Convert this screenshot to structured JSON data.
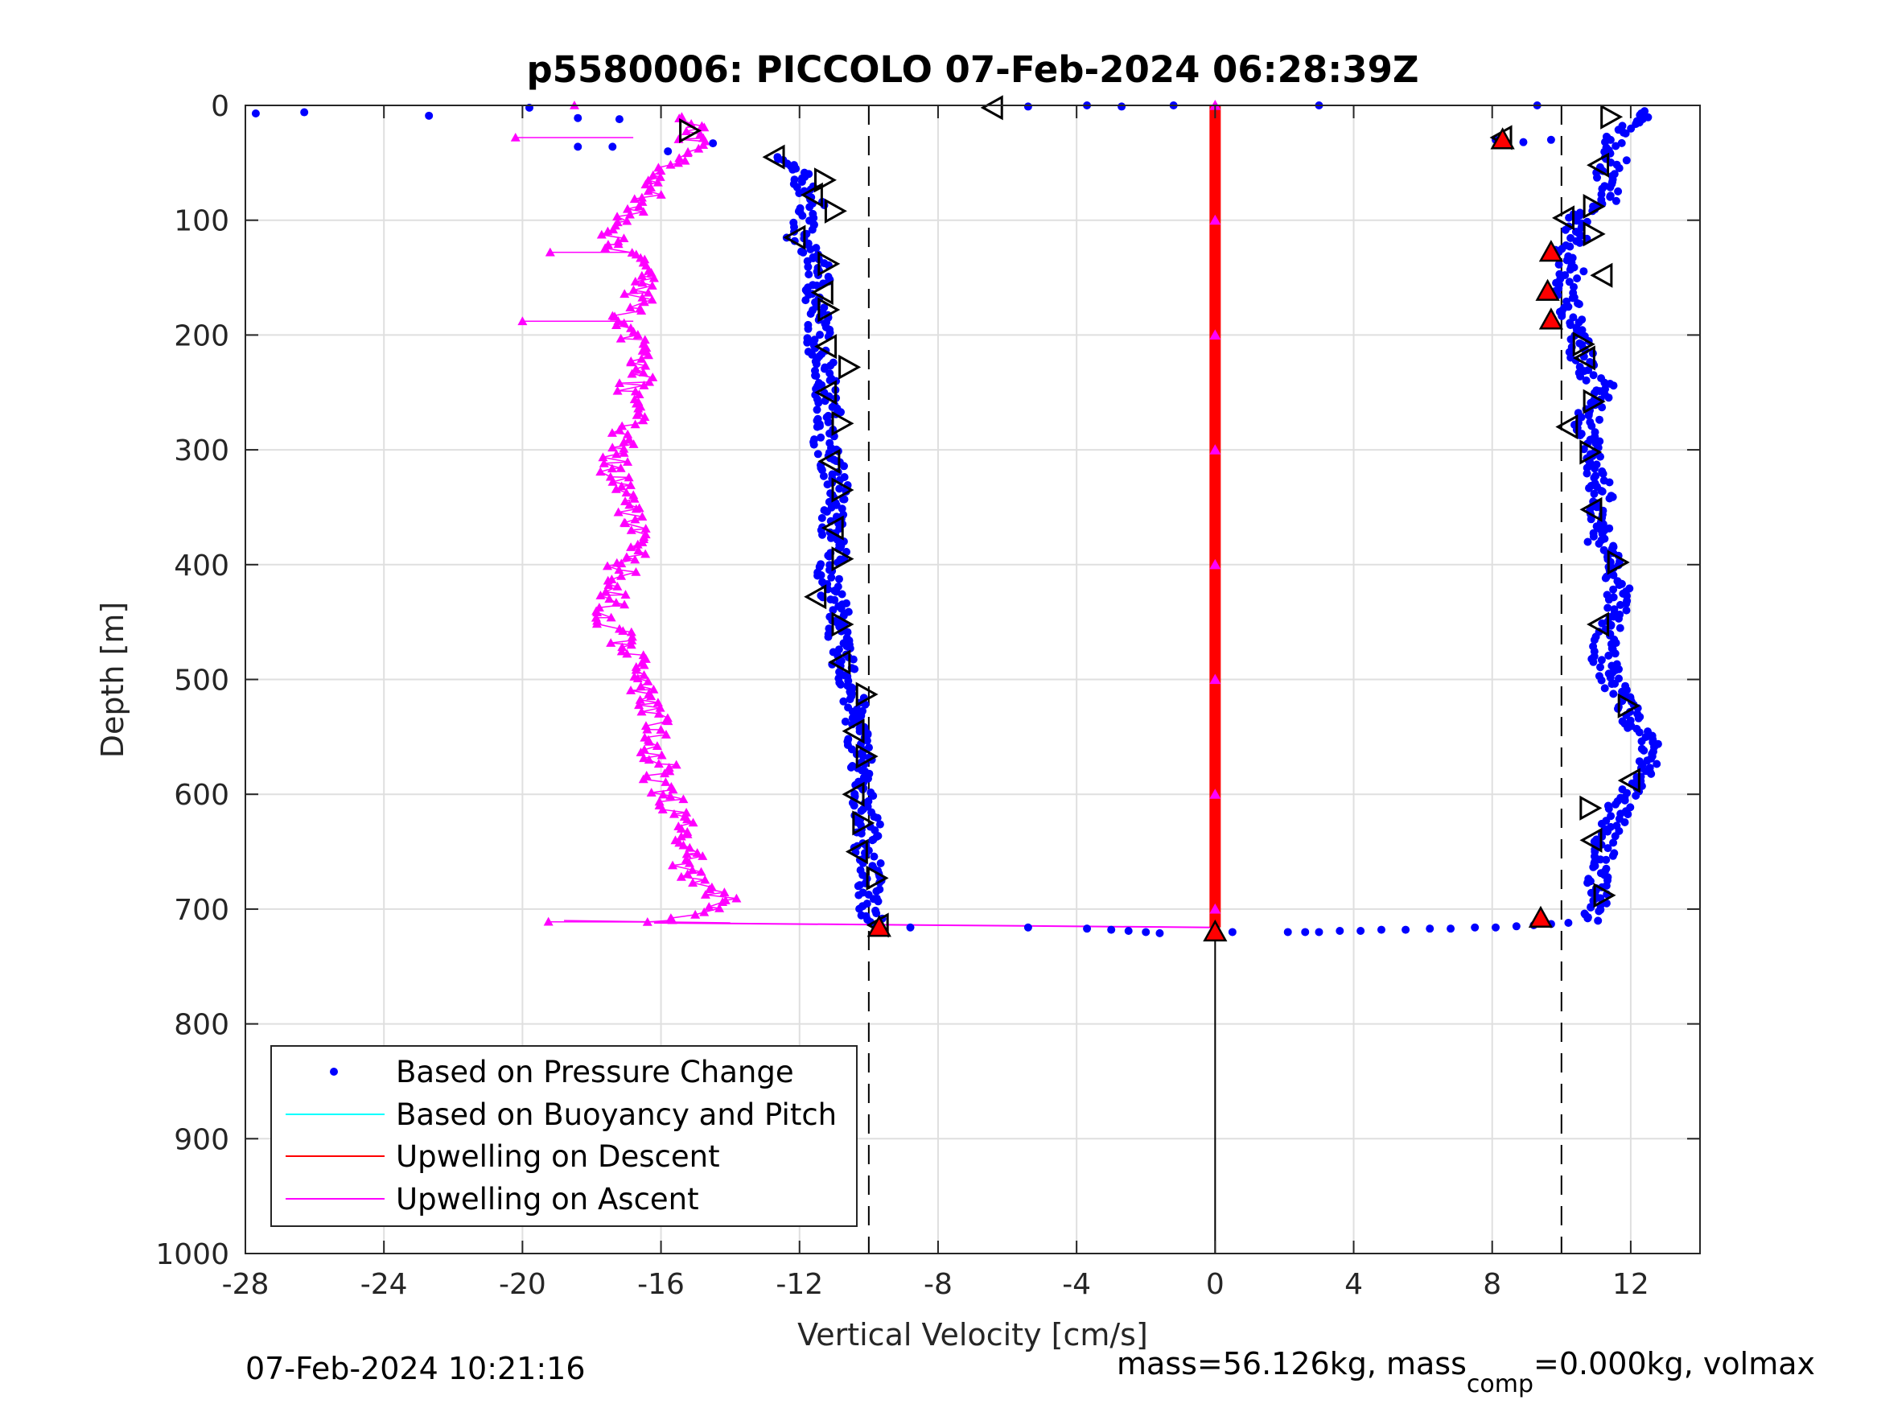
{
  "chart_data": {
    "type": "scatter",
    "title": "p5580006: PICCOLO 07-Feb-2024 06:28:39Z",
    "xlabel": "Vertical Velocity [cm/s]",
    "ylabel": "Depth [m]",
    "xlim": [
      -28,
      14
    ],
    "ylim": [
      0,
      1000
    ],
    "y_reversed": true,
    "grid": true,
    "xticks": [
      -28,
      -24,
      -20,
      -16,
      -12,
      -8,
      -4,
      0,
      4,
      8,
      12
    ],
    "yticks": [
      0,
      100,
      200,
      300,
      400,
      500,
      600,
      700,
      800,
      900,
      1000
    ],
    "reference_lines": [
      -10,
      10
    ],
    "legend": {
      "placement": "bottom-left",
      "entries": [
        {
          "label": "Based on Pressure Change",
          "color": "#0000ff",
          "style": "dot"
        },
        {
          "label": "Based on Buoyancy and Pitch",
          "color": "#00ffff",
          "style": "line"
        },
        {
          "label": "Upwelling on Descent",
          "color": "#ff0000",
          "style": "line"
        },
        {
          "label": "Upwelling on Ascent",
          "color": "#ff00ff",
          "style": "line"
        }
      ]
    },
    "series": [
      {
        "key": "pressure_descent",
        "color": "#0000ff",
        "marker": "dot",
        "points": [
          [
            -12.8,
            45
          ],
          [
            -12.2,
            55
          ],
          [
            -11.8,
            70
          ],
          [
            -11.6,
            85
          ],
          [
            -11.8,
            100
          ],
          [
            -12.1,
            115
          ],
          [
            -11.6,
            130
          ],
          [
            -11.4,
            150
          ],
          [
            -11.6,
            170
          ],
          [
            -11.4,
            190
          ],
          [
            -11.5,
            210
          ],
          [
            -11.2,
            230
          ],
          [
            -11.3,
            250
          ],
          [
            -11.1,
            270
          ],
          [
            -11.3,
            290
          ],
          [
            -11.1,
            310
          ],
          [
            -10.9,
            330
          ],
          [
            -11.0,
            350
          ],
          [
            -11.1,
            370
          ],
          [
            -10.9,
            390
          ],
          [
            -11.2,
            410
          ],
          [
            -11.0,
            430
          ],
          [
            -10.8,
            450
          ],
          [
            -10.9,
            470
          ],
          [
            -10.7,
            490
          ],
          [
            -10.5,
            510
          ],
          [
            -10.4,
            530
          ],
          [
            -10.3,
            550
          ],
          [
            -10.2,
            570
          ],
          [
            -10.3,
            590
          ],
          [
            -10.1,
            610
          ],
          [
            -10.0,
            630
          ],
          [
            -10.1,
            650
          ],
          [
            -9.9,
            670
          ],
          [
            -10.1,
            690
          ],
          [
            -9.9,
            705
          ],
          [
            -9.7,
            715
          ]
        ]
      },
      {
        "key": "pressure_ascent",
        "color": "#0000ff",
        "marker": "dot",
        "points": [
          [
            10.9,
            710
          ],
          [
            11.2,
            690
          ],
          [
            11.0,
            670
          ],
          [
            11.2,
            650
          ],
          [
            11.4,
            630
          ],
          [
            11.7,
            610
          ],
          [
            12.2,
            590
          ],
          [
            12.5,
            570
          ],
          [
            12.6,
            555
          ],
          [
            12.1,
            540
          ],
          [
            11.8,
            520
          ],
          [
            11.4,
            500
          ],
          [
            11.2,
            480
          ],
          [
            11.3,
            460
          ],
          [
            11.6,
            440
          ],
          [
            11.7,
            420
          ],
          [
            11.5,
            400
          ],
          [
            11.1,
            380
          ],
          [
            11.0,
            360
          ],
          [
            11.2,
            340
          ],
          [
            11.0,
            320
          ],
          [
            10.8,
            300
          ],
          [
            10.7,
            280
          ],
          [
            10.9,
            260
          ],
          [
            11.3,
            248
          ],
          [
            10.8,
            235
          ],
          [
            10.6,
            220
          ],
          [
            10.5,
            205
          ],
          [
            10.3,
            190
          ],
          [
            10.2,
            175
          ],
          [
            10.1,
            160
          ],
          [
            10.3,
            145
          ],
          [
            10.0,
            130
          ],
          [
            10.5,
            115
          ],
          [
            10.4,
            100
          ],
          [
            11.2,
            85
          ],
          [
            11.5,
            75
          ],
          [
            11.3,
            60
          ],
          [
            11.6,
            45
          ],
          [
            11.4,
            30
          ],
          [
            12.0,
            15
          ],
          [
            12.4,
            5
          ]
        ]
      },
      {
        "key": "pressure_surface_outliers",
        "color": "#0000ff",
        "marker": "dot",
        "points": [
          [
            -27.7,
            7
          ],
          [
            -26.3,
            6
          ],
          [
            -22.7,
            9
          ],
          [
            -19.8,
            2
          ],
          [
            -18.4,
            11
          ],
          [
            -17.2,
            12
          ],
          [
            -18.4,
            36
          ],
          [
            -17.4,
            36
          ],
          [
            -15.8,
            40
          ],
          [
            -14.5,
            33
          ],
          [
            -5.4,
            1
          ],
          [
            -3.7,
            0
          ],
          [
            -2.7,
            1
          ],
          [
            -1.2,
            0
          ],
          [
            3.0,
            0
          ],
          [
            9.3,
            0
          ],
          [
            8.1,
            30
          ],
          [
            8.9,
            32
          ],
          [
            9.7,
            30
          ]
        ]
      },
      {
        "key": "pressure_bottom_turnaround",
        "color": "#0000ff",
        "marker": "dot",
        "points": [
          [
            -8.8,
            716
          ],
          [
            -5.4,
            716
          ],
          [
            -3.7,
            717
          ],
          [
            -3.0,
            718
          ],
          [
            -2.5,
            719
          ],
          [
            -2.0,
            720
          ],
          [
            -1.6,
            721
          ],
          [
            0.5,
            720
          ],
          [
            2.1,
            720
          ],
          [
            2.6,
            720
          ],
          [
            3.0,
            720
          ],
          [
            3.6,
            719
          ],
          [
            4.2,
            719
          ],
          [
            4.8,
            718
          ],
          [
            5.5,
            718
          ],
          [
            6.2,
            717
          ],
          [
            6.8,
            717
          ],
          [
            7.5,
            716
          ],
          [
            8.1,
            716
          ],
          [
            8.7,
            715
          ],
          [
            9.2,
            714
          ],
          [
            9.7,
            713
          ],
          [
            10.2,
            712
          ]
        ]
      },
      {
        "key": "upwelling_ascent",
        "color": "#ff00ff",
        "marker": "triangle",
        "points": [
          [
            -18.8,
            710
          ],
          [
            -16.2,
            712
          ],
          [
            -14.6,
            700
          ],
          [
            -14.2,
            690
          ],
          [
            -14.9,
            680
          ],
          [
            -15.3,
            665
          ],
          [
            -15.1,
            650
          ],
          [
            -15.6,
            635
          ],
          [
            -15.4,
            620
          ],
          [
            -15.8,
            605
          ],
          [
            -16.1,
            590
          ],
          [
            -15.9,
            575
          ],
          [
            -16.2,
            560
          ],
          [
            -16.0,
            545
          ],
          [
            -16.3,
            530
          ],
          [
            -16.5,
            515
          ],
          [
            -16.8,
            500
          ],
          [
            -16.6,
            485
          ],
          [
            -17.0,
            470
          ],
          [
            -17.4,
            455
          ],
          [
            -17.6,
            440
          ],
          [
            -17.3,
            425
          ],
          [
            -17.2,
            410
          ],
          [
            -17.0,
            395
          ],
          [
            -16.6,
            380
          ],
          [
            -16.9,
            365
          ],
          [
            -17.0,
            350
          ],
          [
            -17.2,
            335
          ],
          [
            -17.3,
            320
          ],
          [
            -17.4,
            305
          ],
          [
            -17.1,
            290
          ],
          [
            -16.8,
            275
          ],
          [
            -17.0,
            260
          ],
          [
            -16.9,
            245
          ],
          [
            -16.4,
            230
          ],
          [
            -16.6,
            215
          ],
          [
            -16.8,
            200
          ],
          [
            -17.0,
            185
          ],
          [
            -16.7,
            170
          ],
          [
            -16.5,
            155
          ],
          [
            -16.6,
            140
          ],
          [
            -17.2,
            125
          ],
          [
            -17.5,
            110
          ],
          [
            -17.0,
            95
          ],
          [
            -16.4,
            80
          ],
          [
            -16.0,
            65
          ],
          [
            -15.6,
            50
          ],
          [
            -15.2,
            35
          ],
          [
            -15.0,
            20
          ],
          [
            -15.4,
            10
          ],
          [
            -20.0,
            188
          ],
          [
            -19.2,
            128
          ],
          [
            -20.2,
            28
          ],
          [
            -18.5,
            0
          ]
        ]
      },
      {
        "key": "upwelling_descent",
        "color": "#ff0000",
        "marker": "triangle",
        "points": [
          [
            0,
            0
          ],
          [
            0,
            100
          ],
          [
            0,
            200
          ],
          [
            0,
            300
          ],
          [
            0,
            400
          ],
          [
            0,
            500
          ],
          [
            0,
            600
          ],
          [
            0,
            700
          ],
          [
            0,
            716
          ]
        ]
      },
      {
        "key": "buoyancy_pitch_descent",
        "color": "#000000",
        "marker": "triangle-outline",
        "points": [
          [
            -12.7,
            45
          ],
          [
            -11.3,
            65
          ],
          [
            -11.6,
            78
          ],
          [
            -11.0,
            92
          ],
          [
            -12.1,
            115
          ],
          [
            -11.2,
            138
          ],
          [
            -11.3,
            163
          ],
          [
            -11.2,
            178
          ],
          [
            -11.2,
            210
          ],
          [
            -10.6,
            228
          ],
          [
            -11.2,
            250
          ],
          [
            -10.8,
            277
          ],
          [
            -11.1,
            310
          ],
          [
            -10.8,
            335
          ],
          [
            -11.0,
            368
          ],
          [
            -10.8,
            395
          ],
          [
            -11.5,
            428
          ],
          [
            -10.8,
            452
          ],
          [
            -10.8,
            485
          ],
          [
            -10.1,
            513
          ],
          [
            -10.4,
            545
          ],
          [
            -10.1,
            567
          ],
          [
            -10.4,
            600
          ],
          [
            -10.2,
            625
          ],
          [
            -10.3,
            650
          ],
          [
            -9.8,
            673
          ],
          [
            -9.7,
            714
          ]
        ]
      },
      {
        "key": "buoyancy_pitch_ascent",
        "color": "#000000",
        "marker": "triangle-outline",
        "points": [
          [
            11.2,
            688
          ],
          [
            10.9,
            640
          ],
          [
            10.8,
            612
          ],
          [
            12.0,
            588
          ],
          [
            11.9,
            523
          ],
          [
            11.1,
            452
          ],
          [
            11.6,
            398
          ],
          [
            10.9,
            352
          ],
          [
            10.8,
            302
          ],
          [
            10.2,
            280
          ],
          [
            10.9,
            258
          ],
          [
            10.7,
            220
          ],
          [
            10.6,
            208
          ],
          [
            11.2,
            148
          ],
          [
            10.9,
            112
          ],
          [
            10.1,
            98
          ],
          [
            10.9,
            88
          ],
          [
            11.1,
            52
          ],
          [
            11.4,
            10
          ],
          [
            8.3,
            28
          ],
          [
            -6.4,
            2
          ],
          [
            -15.2,
            22
          ]
        ]
      },
      {
        "key": "bottom_markers",
        "color": "#ff0000",
        "marker": "triangle-filled",
        "points": [
          [
            -9.7,
            716
          ],
          [
            0.0,
            720
          ],
          [
            9.4,
            708
          ],
          [
            9.7,
            128
          ],
          [
            9.6,
            162
          ],
          [
            9.7,
            187
          ],
          [
            8.3,
            30
          ]
        ]
      }
    ]
  },
  "footer": {
    "timestamp": "07-Feb-2024 10:21:16",
    "mass_text_1": "mass=56.126kg, mass",
    "mass_sub": "comp",
    "mass_text_2": "=0.000kg, volmax"
  }
}
